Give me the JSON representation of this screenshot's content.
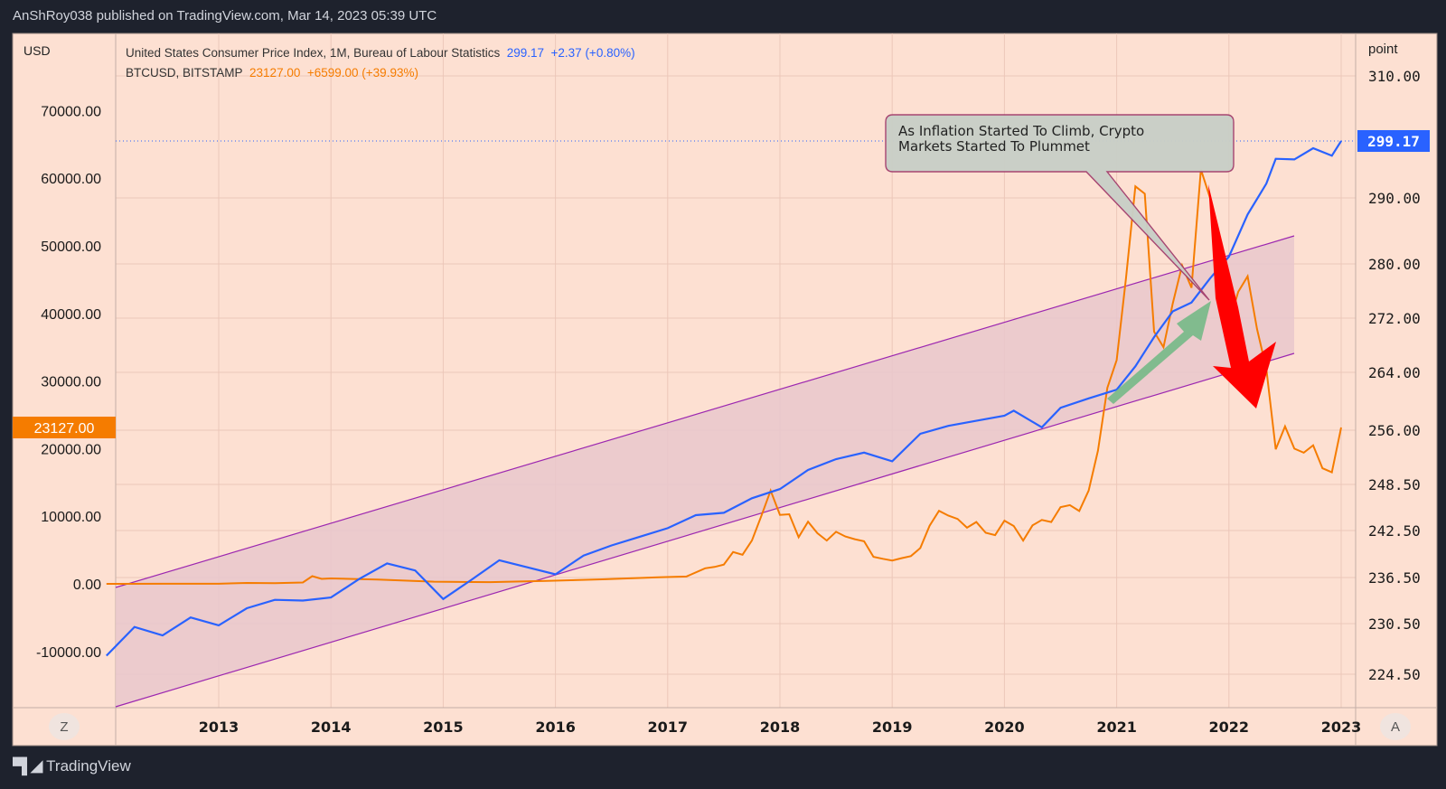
{
  "header": {
    "published": "AnShRoy038 published on TradingView.com, Mar 14, 2023 05:39 UTC"
  },
  "footer": {
    "brand": "TradingView",
    "logo_glyph": "TV"
  },
  "colors": {
    "background": "#fde0d2",
    "cpi": "#2962ff",
    "btc": "#f57c00",
    "channel": "#9c27b0",
    "channel_fill": "#e9c7cc",
    "callout_fill": "#c9cfc7",
    "callout_border": "#a4406e",
    "green_arrow": "#7bb98a",
    "red_arrow": "#ff0000"
  },
  "buttons": {
    "left": "Z",
    "right": "A"
  },
  "chart_data": {
    "type": "line",
    "left_axis": {
      "unit": "USD",
      "ticks": [
        "70000.00",
        "60000.00",
        "50000.00",
        "40000.00",
        "30000.00",
        "20000.00",
        "10000.00",
        "0.00",
        "-10000.00"
      ],
      "current_label": "23127.00"
    },
    "right_axis": {
      "unit": "point",
      "ticks": [
        "310.00",
        "290.00",
        "280.00",
        "272.00",
        "264.00",
        "256.00",
        "248.50",
        "242.50",
        "236.50",
        "230.50",
        "224.50"
      ],
      "current_label": "299.17",
      "scale": "nonlinear"
    },
    "x_ticks": [
      "2013",
      "2014",
      "2015",
      "2016",
      "2017",
      "2018",
      "2019",
      "2020",
      "2021",
      "2022",
      "2023"
    ],
    "grid": true,
    "legend": [
      {
        "name": "United States Consumer Price Index, 1M, Bureau of Labour Statistics",
        "value": "299.17",
        "change": "+2.37 (+0.80%)"
      },
      {
        "name": "BTCUSD, BITSTAMP",
        "value": "23127.00",
        "change": "+6599.00 (+39.93%)"
      }
    ],
    "series": [
      {
        "name": "United States Consumer Price Index, 1M, Bureau of Labour Statistics",
        "axis": "right",
        "points": [
          [
            "2012-01",
            226.7
          ],
          [
            "2012-04",
            230.1
          ],
          [
            "2012-07",
            229.1
          ],
          [
            "2012-10",
            231.3
          ],
          [
            "2013-01",
            230.3
          ],
          [
            "2013-04",
            232.5
          ],
          [
            "2013-07",
            233.6
          ],
          [
            "2013-10",
            233.5
          ],
          [
            "2014-01",
            233.9
          ],
          [
            "2014-04",
            236.3
          ],
          [
            "2014-07",
            238.3
          ],
          [
            "2014-10",
            237.4
          ],
          [
            "2015-01",
            233.7
          ],
          [
            "2015-04",
            236.2
          ],
          [
            "2015-07",
            238.7
          ],
          [
            "2015-10",
            237.8
          ],
          [
            "2016-01",
            236.9
          ],
          [
            "2016-04",
            239.3
          ],
          [
            "2016-07",
            240.6
          ],
          [
            "2016-10",
            241.7
          ],
          [
            "2017-01",
            242.8
          ],
          [
            "2017-04",
            244.5
          ],
          [
            "2017-07",
            244.8
          ],
          [
            "2017-10",
            246.7
          ],
          [
            "2018-01",
            247.9
          ],
          [
            "2018-04",
            250.5
          ],
          [
            "2018-07",
            252.0
          ],
          [
            "2018-10",
            252.9
          ],
          [
            "2019-01",
            251.7
          ],
          [
            "2019-04",
            255.5
          ],
          [
            "2019-07",
            256.6
          ],
          [
            "2019-10",
            257.3
          ],
          [
            "2020-01",
            258.0
          ],
          [
            "2020-02",
            258.7
          ],
          [
            "2020-05",
            256.4
          ],
          [
            "2020-07",
            259.1
          ],
          [
            "2020-10",
            260.4
          ],
          [
            "2021-01",
            261.6
          ],
          [
            "2021-03",
            264.9
          ],
          [
            "2021-05",
            269.2
          ],
          [
            "2021-07",
            273.0
          ],
          [
            "2021-09",
            274.3
          ],
          [
            "2021-11",
            277.9
          ],
          [
            "2022-01",
            281.1
          ],
          [
            "2022-03",
            287.5
          ],
          [
            "2022-05",
            292.3
          ],
          [
            "2022-06",
            296.3
          ],
          [
            "2022-08",
            296.2
          ],
          [
            "2022-10",
            298.0
          ],
          [
            "2022-12",
            296.8
          ],
          [
            "2023-01",
            299.17
          ]
        ]
      },
      {
        "name": "BTCUSD, BITSTAMP",
        "axis": "left",
        "points": [
          [
            "2012-01",
            6
          ],
          [
            "2012-07",
            9
          ],
          [
            "2013-01",
            20
          ],
          [
            "2013-04",
            140
          ],
          [
            "2013-07",
            100
          ],
          [
            "2013-10",
            200
          ],
          [
            "2013-11",
            1130
          ],
          [
            "2013-12",
            730
          ],
          [
            "2014-01",
            800
          ],
          [
            "2014-06",
            640
          ],
          [
            "2014-12",
            320
          ],
          [
            "2015-06",
            260
          ],
          [
            "2015-12",
            430
          ],
          [
            "2016-06",
            670
          ],
          [
            "2016-12",
            960
          ],
          [
            "2017-03",
            1080
          ],
          [
            "2017-05",
            2300
          ],
          [
            "2017-06",
            2500
          ],
          [
            "2017-07",
            2850
          ],
          [
            "2017-08",
            4700
          ],
          [
            "2017-09",
            4300
          ],
          [
            "2017-10",
            6400
          ],
          [
            "2017-11",
            10000
          ],
          [
            "2017-12",
            13800
          ],
          [
            "2018-01",
            10200
          ],
          [
            "2018-02",
            10300
          ],
          [
            "2018-03",
            6900
          ],
          [
            "2018-04",
            9200
          ],
          [
            "2018-05",
            7500
          ],
          [
            "2018-06",
            6400
          ],
          [
            "2018-07",
            7700
          ],
          [
            "2018-08",
            7000
          ],
          [
            "2018-09",
            6600
          ],
          [
            "2018-10",
            6300
          ],
          [
            "2018-11",
            4000
          ],
          [
            "2018-12",
            3700
          ],
          [
            "2019-01",
            3450
          ],
          [
            "2019-02",
            3800
          ],
          [
            "2019-03",
            4100
          ],
          [
            "2019-04",
            5300
          ],
          [
            "2019-05",
            8600
          ],
          [
            "2019-06",
            10800
          ],
          [
            "2019-07",
            10100
          ],
          [
            "2019-08",
            9600
          ],
          [
            "2019-09",
            8300
          ],
          [
            "2019-10",
            9150
          ],
          [
            "2019-11",
            7550
          ],
          [
            "2019-12",
            7200
          ],
          [
            "2020-01",
            9350
          ],
          [
            "2020-02",
            8550
          ],
          [
            "2020-03",
            6400
          ],
          [
            "2020-04",
            8650
          ],
          [
            "2020-05",
            9450
          ],
          [
            "2020-06",
            9140
          ],
          [
            "2020-07",
            11350
          ],
          [
            "2020-08",
            11650
          ],
          [
            "2020-09",
            10780
          ],
          [
            "2020-10",
            13800
          ],
          [
            "2020-11",
            19700
          ],
          [
            "2020-12",
            29000
          ],
          [
            "2021-01",
            33100
          ],
          [
            "2021-02",
            45200
          ],
          [
            "2021-03",
            58800
          ],
          [
            "2021-04",
            57700
          ],
          [
            "2021-05",
            37300
          ],
          [
            "2021-06",
            35000
          ],
          [
            "2021-07",
            41500
          ],
          [
            "2021-08",
            47100
          ],
          [
            "2021-09",
            43800
          ],
          [
            "2021-10",
            61300
          ],
          [
            "2021-11",
            57000
          ],
          [
            "2021-12",
            46200
          ],
          [
            "2022-01",
            38500
          ],
          [
            "2022-02",
            43200
          ],
          [
            "2022-03",
            45500
          ],
          [
            "2022-04",
            37700
          ],
          [
            "2022-05",
            31800
          ],
          [
            "2022-06",
            19900
          ],
          [
            "2022-07",
            23300
          ],
          [
            "2022-08",
            20000
          ],
          [
            "2022-09",
            19400
          ],
          [
            "2022-10",
            20500
          ],
          [
            "2022-11",
            17100
          ],
          [
            "2022-12",
            16500
          ],
          [
            "2023-01",
            23127
          ]
        ]
      }
    ],
    "annotations": {
      "callout": "As Inflation Started To Climb, Crypto Markets Started To Plummet",
      "callout_lines": [
        "As Inflation Started To Climb, Crypto",
        "Markets Started To Plummet"
      ]
    }
  }
}
